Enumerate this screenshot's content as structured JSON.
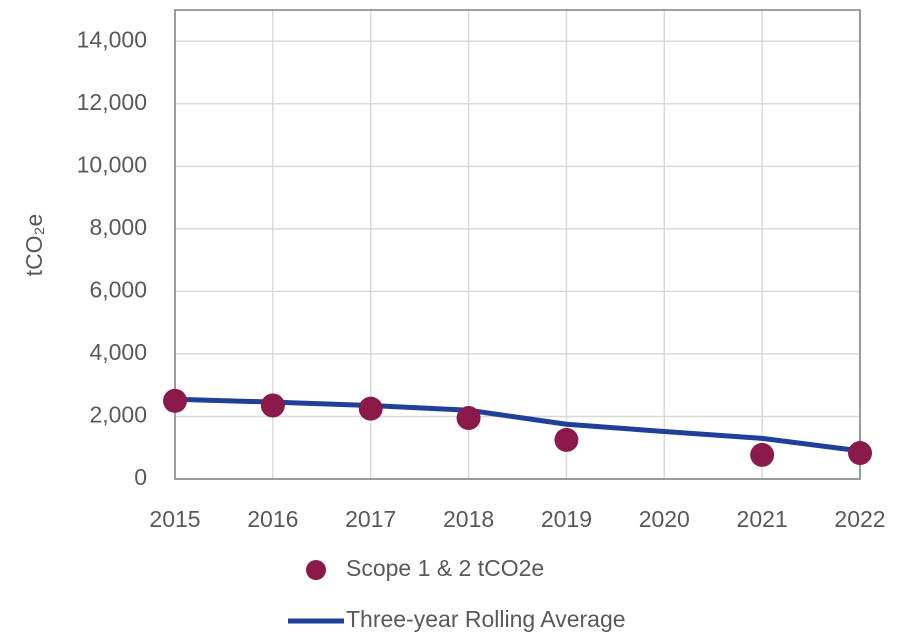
{
  "chart_data": {
    "type": "line",
    "y_label": "tCO₂e",
    "x": [
      2015,
      2016,
      2017,
      2018,
      2019,
      2020,
      2021,
      2022
    ],
    "xlim": [
      2015,
      2022
    ],
    "xticks": [
      2015,
      2016,
      2017,
      2018,
      2019,
      2020,
      2021,
      2022
    ],
    "ylim": [
      0,
      15000
    ],
    "yticks": [
      0,
      {
        "value": 2000,
        "label": "2,000"
      },
      {
        "value": 4000,
        "label": "4,000"
      },
      {
        "value": 6000,
        "label": "6,000"
      },
      {
        "value": 8000,
        "label": "8,000"
      },
      {
        "value": 10000,
        "label": "10,000"
      },
      {
        "value": 12000,
        "label": "12,000"
      },
      {
        "value": 14000,
        "label": "14,000"
      }
    ],
    "grid": true,
    "series": [
      {
        "name": "Scope 1 & 2 tCO2e",
        "style": "marker",
        "color": "#8b1a4b",
        "values": [
          2500,
          2350,
          2250,
          1950,
          1250,
          null,
          770,
          830
        ]
      },
      {
        "name": "Three-year Rolling Average",
        "style": "line",
        "color": "#1f3f99",
        "values": [
          2550,
          2460,
          2350,
          2200,
          1750,
          1520,
          1300,
          900
        ]
      }
    ]
  }
}
